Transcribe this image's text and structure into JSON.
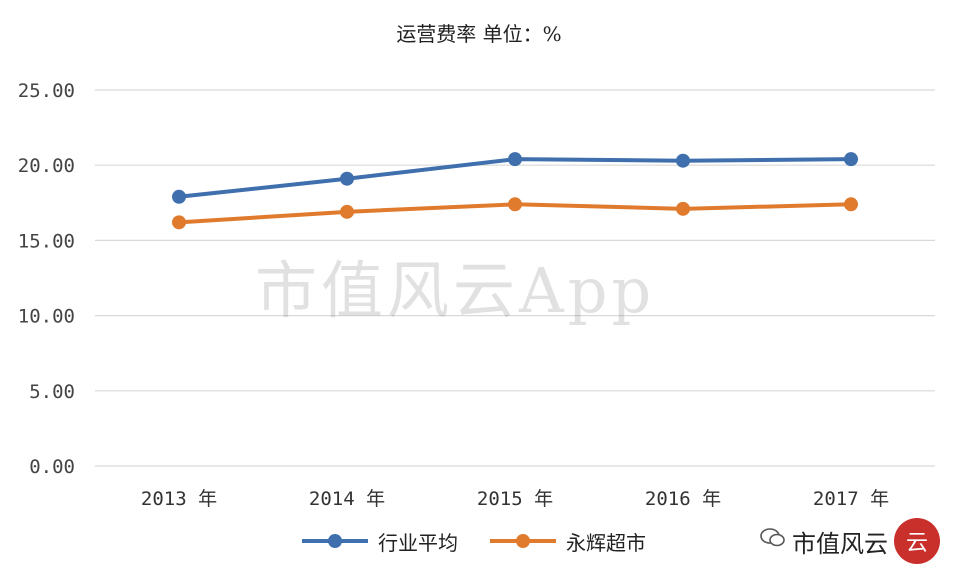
{
  "chart_data": {
    "type": "line",
    "title": "运营费率   单位：%",
    "categories": [
      "2013 年",
      "2014 年",
      "2015 年",
      "2016 年",
      "2017 年"
    ],
    "yticks": [
      "25.00",
      "20.00",
      "15.00",
      "10.00",
      "5.00",
      "0.00"
    ],
    "ylim": [
      0,
      25
    ],
    "grid": true,
    "legend_position": "bottom",
    "series": [
      {
        "name": "行业平均",
        "color": "#3f6fad",
        "values": [
          17.9,
          19.1,
          20.4,
          20.3,
          20.4
        ]
      },
      {
        "name": "永辉超市",
        "color": "#e07b2e",
        "values": [
          16.2,
          16.9,
          17.4,
          17.1,
          17.4
        ]
      }
    ]
  },
  "watermark": "市值风云App",
  "brand": {
    "text": "市值风云",
    "seal": "云"
  }
}
